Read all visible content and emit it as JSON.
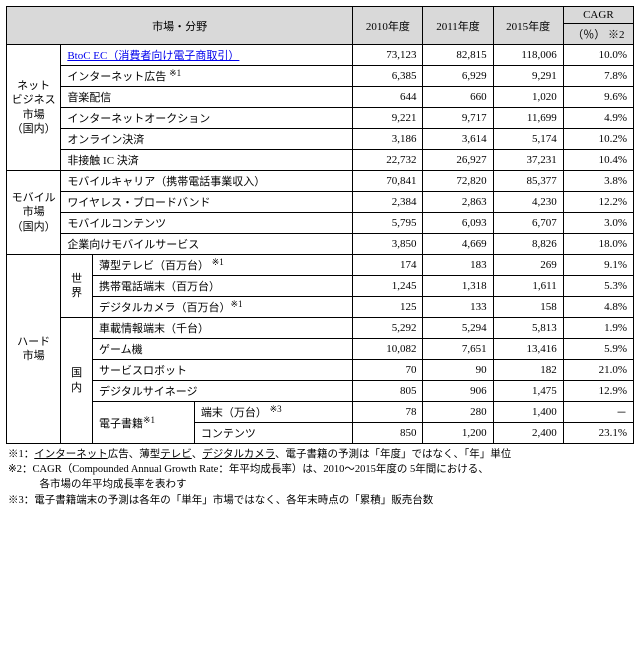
{
  "header": {
    "seg": "市場・分野",
    "y2010": "2010年度",
    "y2011": "2011年度",
    "y2015": "2015年度",
    "cagr_top": "CAGR",
    "cagr_bot": "（％） ※2"
  },
  "groups": [
    {
      "label": "ネット\nビジネス\n市場\n（国内）",
      "rows": [
        {
          "seg1": "BtoC EC（消費者向け電子商取引）",
          "seg1_link": true,
          "v10": "73,123",
          "v11": "82,815",
          "v15": "118,006",
          "cagr": "10.0%"
        },
        {
          "seg1": "インターネット広告 ",
          "note1": "※1",
          "v10": "6,385",
          "v11": "6,929",
          "v15": "9,291",
          "cagr": "7.8%"
        },
        {
          "seg1": "音楽配信",
          "v10": "644",
          "v11": "660",
          "v15": "1,020",
          "cagr": "9.6%"
        },
        {
          "seg1": "インターネットオークション",
          "v10": "9,221",
          "v11": "9,717",
          "v15": "11,699",
          "cagr": "4.9%"
        },
        {
          "seg1": "オンライン決済",
          "v10": "3,186",
          "v11": "3,614",
          "v15": "5,174",
          "cagr": "10.2%"
        },
        {
          "seg1": "非接触 IC 決済",
          "v10": "22,732",
          "v11": "26,927",
          "v15": "37,231",
          "cagr": "10.4%"
        }
      ]
    },
    {
      "label": "モバイル\n市場\n（国内）",
      "rows": [
        {
          "seg1": "モバイルキャリア（携帯電話事業収入）",
          "v10": "70,841",
          "v11": "72,820",
          "v15": "85,377",
          "cagr": "3.8%"
        },
        {
          "seg1": "ワイヤレス・ブロードバンド",
          "v10": "2,384",
          "v11": "2,863",
          "v15": "4,230",
          "cagr": "12.2%"
        },
        {
          "seg1": "モバイルコンテンツ",
          "v10": "5,795",
          "v11": "6,093",
          "v15": "6,707",
          "cagr": "3.0%"
        },
        {
          "seg1": "企業向けモバイルサービス",
          "v10": "3,850",
          "v11": "4,669",
          "v15": "8,826",
          "cagr": "18.0%"
        }
      ]
    }
  ],
  "hardware": {
    "label": "ハード\n市場",
    "world": {
      "label": "世\n界",
      "rows": [
        {
          "seg1": "薄型テレビ（百万台） ",
          "note1": "※1",
          "v10": "174",
          "v11": "183",
          "v15": "269",
          "cagr": "9.1%"
        },
        {
          "seg1": "携帯電話端末（百万台）",
          "v10": "1,245",
          "v11": "1,318",
          "v15": "1,611",
          "cagr": "5.3%"
        },
        {
          "seg1": "デジタルカメラ（百万台）",
          "note1": "※1",
          "v10": "125",
          "v11": "133",
          "v15": "158",
          "cagr": "4.8%"
        }
      ]
    },
    "domestic": {
      "label": "国\n内",
      "rows": [
        {
          "seg1": "車載情報端末（千台）",
          "v10": "5,292",
          "v11": "5,294",
          "v15": "5,813",
          "cagr": "1.9%"
        },
        {
          "seg1": "ゲーム機",
          "v10": "10,082",
          "v11": "7,651",
          "v15": "13,416",
          "cagr": "5.9%"
        },
        {
          "seg1": "サービスロボット",
          "v10": "70",
          "v11": "90",
          "v15": "182",
          "cagr": "21.0%"
        },
        {
          "seg1": "デジタルサイネージ",
          "v10": "805",
          "v11": "906",
          "v15": "1,475",
          "cagr": "12.9%"
        }
      ],
      "ebook": {
        "label": "電子書籍",
        "note": "※1",
        "rows": [
          {
            "seg2": "端末（万台） ",
            "note2": "※3",
            "v10": "78",
            "v11": "280",
            "v15": "1,400",
            "cagr": "－"
          },
          {
            "seg2": "コンテンツ",
            "v10": "850",
            "v11": "1,200",
            "v15": "2,400",
            "cagr": "23.1%"
          }
        ]
      }
    }
  },
  "notes": {
    "n1a": "※1：",
    "n1b": "インターネット",
    "n1c": "広告、薄型",
    "n1d": "テレビ",
    "n1e": "、",
    "n1f": "デジタルカメラ",
    "n1g": "、電子書籍の予測は「年度」ではなく、「年」単位",
    "n2": "※2：CAGR（Compounded Annual Growth Rate：年平均成長率）は、2010～2015年度の 5年間における、\n　　　各市場の年平均成長率を表わす",
    "n3": "※3：電子書籍端末の予測は各年の「単年」市場ではなく、各年末時点の「累積」販売台数"
  }
}
